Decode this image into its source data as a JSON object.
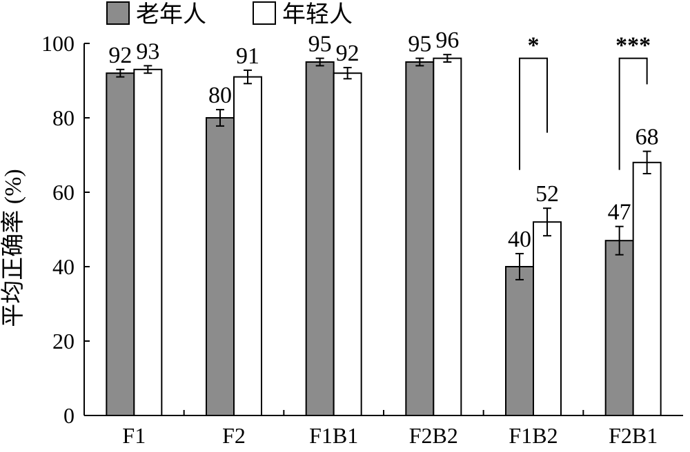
{
  "chart_data": {
    "type": "bar",
    "title": "",
    "xlabel": "",
    "ylabel": "平均正确率 (%)",
    "ylim": [
      0,
      100
    ],
    "yticks": [
      0,
      20,
      40,
      60,
      80,
      100
    ],
    "categories": [
      "F1",
      "F2",
      "F1B1",
      "F2B2",
      "F1B2",
      "F2B1"
    ],
    "series": [
      {
        "name": "老年人",
        "color": "#8c8c8c",
        "values": [
          92,
          80,
          95,
          95,
          40,
          47
        ],
        "errors": [
          1,
          2.2,
          1,
          1,
          3.5,
          3.8
        ]
      },
      {
        "name": "年轻人",
        "color": "#ffffff",
        "values": [
          93,
          91,
          92,
          96,
          52,
          68
        ],
        "errors": [
          1,
          1.8,
          1.5,
          1,
          3.7,
          3
        ]
      }
    ],
    "value_labels": [
      [
        "92",
        "80",
        "95",
        "95",
        "40",
        "47"
      ],
      [
        "93",
        "91",
        "92",
        "96",
        "52",
        "68"
      ]
    ],
    "significance": [
      {
        "category": "F1B2",
        "label": "*"
      },
      {
        "category": "F2B1",
        "label": "***"
      }
    ],
    "legend_position": "top-left",
    "grid": false
  }
}
